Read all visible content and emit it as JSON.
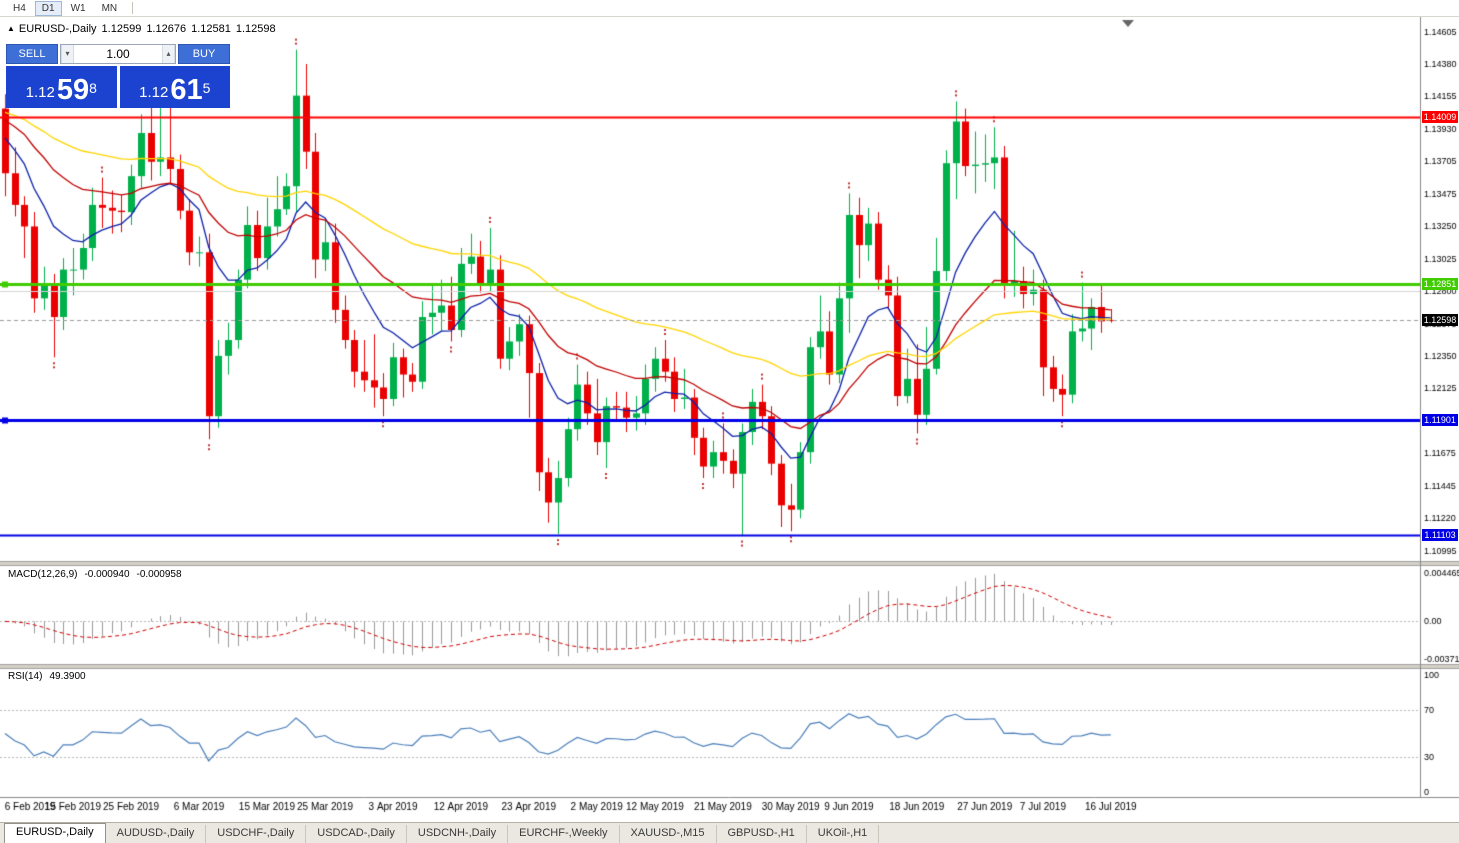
{
  "toolbar": {
    "timeframes": [
      {
        "label": "H4",
        "active": false
      },
      {
        "label": "D1",
        "active": true
      },
      {
        "label": "W1",
        "active": false
      },
      {
        "label": "MN",
        "active": false
      }
    ]
  },
  "chart": {
    "ohlc": {
      "arrow": "▲",
      "symbol": "EURUSD-,Daily",
      "open": "1.12599",
      "high": "1.12676",
      "low": "1.12581",
      "close": "1.12598"
    }
  },
  "one_click": {
    "sell_label": "SELL",
    "buy_label": "BUY",
    "volume": "1.00",
    "spin_down": "▾",
    "spin_up": "▴",
    "sell_price": {
      "prefix": "1.12",
      "big": "59",
      "sup": "8"
    },
    "buy_price": {
      "prefix": "1.12",
      "big": "61",
      "sup": "5"
    }
  },
  "indicators": {
    "macd": {
      "name": "MACD(12,26,9)",
      "main_value": "-0.000940",
      "signal_value": "-0.000958"
    },
    "rsi": {
      "name": "RSI(14)",
      "value": "49.3900"
    }
  },
  "tabs": [
    {
      "label": "EURUSD-,Daily",
      "active": true
    },
    {
      "label": "AUDUSD-,Daily",
      "active": false
    },
    {
      "label": "USDCHF-,Daily",
      "active": false
    },
    {
      "label": "USDCAD-,Daily",
      "active": false
    },
    {
      "label": "USDCNH-,Daily",
      "active": false
    },
    {
      "label": "EURCHF-,Weekly",
      "active": false
    },
    {
      "label": "XAUUSD-,M15",
      "active": false
    },
    {
      "label": "GBPUSD-,H1",
      "active": false
    },
    {
      "label": "UKOil-,H1",
      "active": false
    }
  ],
  "chart_data": {
    "type": "candlestick",
    "symbol": "EURUSD-",
    "timeframe": "Daily",
    "colors": {
      "up": "#00B04B",
      "down": "#EA0000",
      "ma_fast": "#0B20A8",
      "ma_mid": "#C00000",
      "ma_slow": "#FFD400",
      "macd_main": "#999999",
      "macd_signal": "#CC0000",
      "rsi": "#4A7EBB",
      "fractal": "#C03A3A"
    },
    "price_range": {
      "min": 1.1093,
      "max": 1.147
    },
    "price_axis_labels": [
      "1.14605",
      "1.14380",
      "1.14155",
      "1.13930",
      "1.13705",
      "1.13475",
      "1.13250",
      "1.13025",
      "1.12800",
      "1.12575",
      "1.12350",
      "1.12125",
      "1.11900",
      "1.11675",
      "1.11445",
      "1.11220",
      "1.10995"
    ],
    "macd_axis_labels": [
      "0.004465",
      "0.00",
      "-0.003715"
    ],
    "rsi_axis_labels": [
      "100",
      "70",
      "30",
      "0"
    ],
    "rsi_levels": [
      70,
      30
    ],
    "moving_averages": [
      {
        "period": 10,
        "color_key": "ma_fast",
        "seed": 1.1392
      },
      {
        "period": 25,
        "color_key": "ma_mid",
        "seed": 1.1402
      },
      {
        "period": 55,
        "color_key": "ma_slow",
        "seed": 1.1406
      }
    ],
    "macd_params": {
      "fast": 12,
      "slow": 26,
      "signal": 9
    },
    "rsi_params": {
      "period": 14
    },
    "levels": [
      {
        "price": 1.14009,
        "label": "1.14009",
        "color": "#FF0000",
        "width": 2,
        "badge": "#FF0000"
      },
      {
        "price": 1.12851,
        "label": "1.12851",
        "color": "#3FCC00",
        "width": 3,
        "badge": "#3FCC00",
        "handle": true
      },
      {
        "price": 1.128,
        "label": "",
        "color": "#D4D4D4",
        "width": 1,
        "badge": ""
      },
      {
        "price": 1.12598,
        "label": "1.12598",
        "color": "#9A9A9A",
        "width": 1,
        "dashed": true,
        "badge": "#000000"
      },
      {
        "price": 1.11901,
        "label": "1.11901",
        "color": "#0000E6",
        "width": 3,
        "badge": "#0000E6",
        "handle": true
      },
      {
        "price": 1.11103,
        "label": "1.11103",
        "color": "#0000E6",
        "width": 2,
        "badge": "#0000E6"
      }
    ],
    "date_labels": [
      [
        "6 Feb 2019",
        0
      ],
      [
        "15 Feb 2019",
        7
      ],
      [
        "25 Feb 2019",
        13
      ],
      [
        "6 Mar 2019",
        20
      ],
      [
        "15 Mar 2019",
        27
      ],
      [
        "25 Mar 2019",
        33
      ],
      [
        "3 Apr 2019",
        40
      ],
      [
        "12 Apr 2019",
        47
      ],
      [
        "23 Apr 2019",
        54
      ],
      [
        "2 May 2019",
        61
      ],
      [
        "12 May 2019",
        67
      ],
      [
        "21 May 2019",
        74
      ],
      [
        "30 May 2019",
        81
      ],
      [
        "9 Jun 2019",
        87
      ],
      [
        "18 Jun 2019",
        94
      ],
      [
        "27 Jun 2019",
        101
      ],
      [
        "7 Jul 2019",
        107
      ],
      [
        "16 Jul 2019",
        114
      ]
    ],
    "candles": [
      [
        1.1407,
        1.1417,
        1.1346,
        1.1362
      ],
      [
        1.1362,
        1.138,
        1.1332,
        1.134
      ],
      [
        1.134,
        1.1346,
        1.1303,
        1.1325
      ],
      [
        1.1325,
        1.1335,
        1.1265,
        1.1275
      ],
      [
        1.1275,
        1.1297,
        1.1267,
        1.1285
      ],
      [
        1.1285,
        1.1292,
        1.1234,
        1.1262
      ],
      [
        1.1262,
        1.1303,
        1.1253,
        1.1295
      ],
      [
        1.1295,
        1.131,
        1.1277,
        1.1295
      ],
      [
        1.1295,
        1.132,
        1.1288,
        1.131
      ],
      [
        1.131,
        1.1352,
        1.1301,
        1.134
      ],
      [
        1.134,
        1.1359,
        1.1324,
        1.1338
      ],
      [
        1.1338,
        1.135,
        1.132,
        1.1336
      ],
      [
        1.1336,
        1.1347,
        1.1321,
        1.1335
      ],
      [
        1.1335,
        1.1368,
        1.1326,
        1.136
      ],
      [
        1.136,
        1.1403,
        1.1352,
        1.139
      ],
      [
        1.139,
        1.1408,
        1.1357,
        1.137
      ],
      [
        1.137,
        1.142,
        1.136,
        1.1373
      ],
      [
        1.1373,
        1.1409,
        1.1354,
        1.1365
      ],
      [
        1.1365,
        1.1375,
        1.133,
        1.1336
      ],
      [
        1.1336,
        1.1344,
        1.1298,
        1.1307
      ],
      [
        1.1307,
        1.1318,
        1.1297,
        1.1307
      ],
      [
        1.1307,
        1.132,
        1.1177,
        1.1193
      ],
      [
        1.1193,
        1.1246,
        1.1185,
        1.1235
      ],
      [
        1.1235,
        1.1258,
        1.1222,
        1.1246
      ],
      [
        1.1246,
        1.1295,
        1.124,
        1.1288
      ],
      [
        1.1288,
        1.1339,
        1.1282,
        1.1326
      ],
      [
        1.1326,
        1.1336,
        1.1294,
        1.1303
      ],
      [
        1.1303,
        1.1345,
        1.1295,
        1.1325
      ],
      [
        1.1325,
        1.136,
        1.1318,
        1.1337
      ],
      [
        1.1337,
        1.1362,
        1.1333,
        1.1353
      ],
      [
        1.1353,
        1.1448,
        1.1335,
        1.1416
      ],
      [
        1.1416,
        1.1438,
        1.1365,
        1.1377
      ],
      [
        1.1377,
        1.139,
        1.1289,
        1.1302
      ],
      [
        1.1302,
        1.133,
        1.1294,
        1.1314
      ],
      [
        1.1314,
        1.1327,
        1.1258,
        1.1267
      ],
      [
        1.1267,
        1.1277,
        1.124,
        1.1246
      ],
      [
        1.1246,
        1.1253,
        1.1213,
        1.1224
      ],
      [
        1.1224,
        1.1246,
        1.121,
        1.1218
      ],
      [
        1.1218,
        1.125,
        1.1199,
        1.1213
      ],
      [
        1.1213,
        1.1223,
        1.1193,
        1.1205
      ],
      [
        1.1205,
        1.1244,
        1.12,
        1.1234
      ],
      [
        1.1234,
        1.124,
        1.1206,
        1.1222
      ],
      [
        1.1222,
        1.123,
        1.121,
        1.1217
      ],
      [
        1.1217,
        1.1273,
        1.1212,
        1.1262
      ],
      [
        1.1262,
        1.1284,
        1.125,
        1.1265
      ],
      [
        1.1265,
        1.1288,
        1.1252,
        1.127
      ],
      [
        1.127,
        1.129,
        1.1245,
        1.1253
      ],
      [
        1.1253,
        1.131,
        1.1248,
        1.1299
      ],
      [
        1.1299,
        1.132,
        1.1292,
        1.1304
      ],
      [
        1.1304,
        1.1315,
        1.1279,
        1.1284
      ],
      [
        1.1284,
        1.1324,
        1.128,
        1.1295
      ],
      [
        1.1295,
        1.1305,
        1.1226,
        1.1233
      ],
      [
        1.1233,
        1.1255,
        1.1225,
        1.1245
      ],
      [
        1.1245,
        1.1264,
        1.1235,
        1.1257
      ],
      [
        1.1257,
        1.1263,
        1.1192,
        1.1223
      ],
      [
        1.1223,
        1.123,
        1.1141,
        1.1154
      ],
      [
        1.1154,
        1.1164,
        1.1119,
        1.1133
      ],
      [
        1.1133,
        1.1162,
        1.1111,
        1.115
      ],
      [
        1.115,
        1.1192,
        1.1144,
        1.1184
      ],
      [
        1.1184,
        1.1229,
        1.1176,
        1.1215
      ],
      [
        1.1215,
        1.1224,
        1.1187,
        1.1195
      ],
      [
        1.1195,
        1.1219,
        1.1166,
        1.1175
      ],
      [
        1.1175,
        1.1206,
        1.1157,
        1.12
      ],
      [
        1.12,
        1.121,
        1.1189,
        1.1199
      ],
      [
        1.1199,
        1.121,
        1.1182,
        1.1192
      ],
      [
        1.1192,
        1.1207,
        1.1183,
        1.1195
      ],
      [
        1.1195,
        1.1229,
        1.1187,
        1.1219
      ],
      [
        1.1219,
        1.1241,
        1.121,
        1.1233
      ],
      [
        1.1233,
        1.1246,
        1.1217,
        1.1224
      ],
      [
        1.1224,
        1.1234,
        1.1196,
        1.1205
      ],
      [
        1.1205,
        1.1226,
        1.1198,
        1.1206
      ],
      [
        1.1206,
        1.1212,
        1.1166,
        1.1178
      ],
      [
        1.1178,
        1.1185,
        1.115,
        1.1158
      ],
      [
        1.1158,
        1.1176,
        1.115,
        1.1168
      ],
      [
        1.1168,
        1.1188,
        1.1153,
        1.1162
      ],
      [
        1.1162,
        1.117,
        1.1143,
        1.1153
      ],
      [
        1.1153,
        1.1188,
        1.111,
        1.1182
      ],
      [
        1.1182,
        1.1212,
        1.1173,
        1.1203
      ],
      [
        1.1203,
        1.1215,
        1.1184,
        1.1193
      ],
      [
        1.1193,
        1.12,
        1.1152,
        1.116
      ],
      [
        1.116,
        1.1166,
        1.1116,
        1.1131
      ],
      [
        1.1131,
        1.1146,
        1.1113,
        1.1128
      ],
      [
        1.1128,
        1.1175,
        1.1122,
        1.1168
      ],
      [
        1.1168,
        1.1248,
        1.116,
        1.1241
      ],
      [
        1.1241,
        1.1277,
        1.1233,
        1.1252
      ],
      [
        1.1252,
        1.1266,
        1.1215,
        1.1222
      ],
      [
        1.1222,
        1.1286,
        1.1216,
        1.1275
      ],
      [
        1.1275,
        1.1348,
        1.1251,
        1.1333
      ],
      [
        1.1333,
        1.1345,
        1.1289,
        1.1312
      ],
      [
        1.1312,
        1.1338,
        1.1301,
        1.1327
      ],
      [
        1.1327,
        1.1335,
        1.1281,
        1.1288
      ],
      [
        1.1288,
        1.1298,
        1.1268,
        1.1277
      ],
      [
        1.1277,
        1.129,
        1.12,
        1.1207
      ],
      [
        1.1207,
        1.124,
        1.1202,
        1.1219
      ],
      [
        1.1219,
        1.1243,
        1.1181,
        1.1194
      ],
      [
        1.1194,
        1.1255,
        1.1187,
        1.1226
      ],
      [
        1.1226,
        1.1317,
        1.1222,
        1.1294
      ],
      [
        1.1294,
        1.1378,
        1.1287,
        1.1369
      ],
      [
        1.1369,
        1.1412,
        1.1344,
        1.1398
      ],
      [
        1.1398,
        1.1407,
        1.136,
        1.1367
      ],
      [
        1.1367,
        1.1391,
        1.1348,
        1.1368
      ],
      [
        1.1368,
        1.1389,
        1.1356,
        1.1369
      ],
      [
        1.1369,
        1.1394,
        1.1351,
        1.1373
      ],
      [
        1.1373,
        1.1381,
        1.1275,
        1.1285
      ],
      [
        1.1285,
        1.1322,
        1.1276,
        1.1287
      ],
      [
        1.1287,
        1.1297,
        1.1268,
        1.1278
      ],
      [
        1.1278,
        1.1295,
        1.127,
        1.1281
      ],
      [
        1.1281,
        1.1288,
        1.1207,
        1.1227
      ],
      [
        1.1227,
        1.1235,
        1.1203,
        1.1212
      ],
      [
        1.1212,
        1.1222,
        1.1193,
        1.1208
      ],
      [
        1.1208,
        1.1264,
        1.1202,
        1.1252
      ],
      [
        1.1252,
        1.1286,
        1.1245,
        1.1254
      ],
      [
        1.1254,
        1.1275,
        1.1239,
        1.1269
      ],
      [
        1.1269,
        1.1284,
        1.1251,
        1.1259
      ],
      [
        1.12599,
        1.12676,
        1.12581,
        1.12598
      ]
    ]
  }
}
